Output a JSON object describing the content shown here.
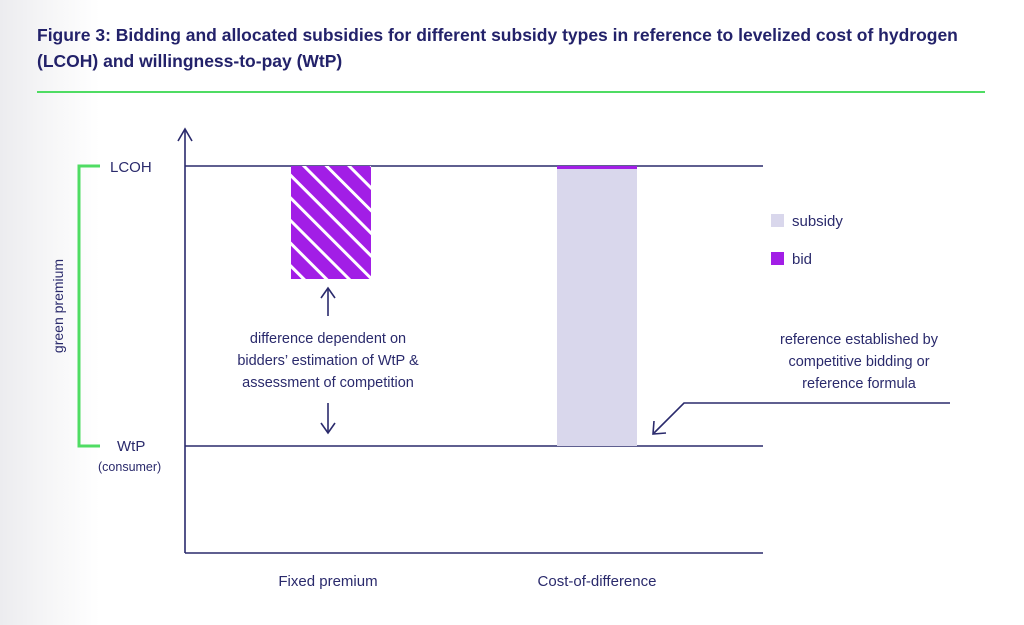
{
  "figure": {
    "title": "Figure 3: Bidding and allocated subsidies for different subsidy types in reference to levelized cost of hydrogen (LCOH) and willingness-to-pay (WtP)"
  },
  "axis": {
    "lcoh_label": "LCOH",
    "wtp_label": "WtP",
    "wtp_sublabel": "(consumer)",
    "bracket_label": "green premium"
  },
  "legend": {
    "subsidy": "subsidy",
    "bid": "bid"
  },
  "annotations": {
    "fixed_premium_note": [
      "difference dependent on",
      "bidders’ estimation of WtP &",
      "assessment of competition"
    ],
    "reference_note": [
      "reference established by",
      "competitive bidding or",
      "reference formula"
    ]
  },
  "categories": {
    "fixed_premium": "Fixed premium",
    "cost_of_difference": "Cost-of-difference"
  },
  "colors": {
    "title": "#23226a",
    "ink": "#2a2a6c",
    "green": "#4fdc63",
    "bid_purple": "#a21ee6",
    "subsidy_lavender": "#d9d7ec"
  }
}
